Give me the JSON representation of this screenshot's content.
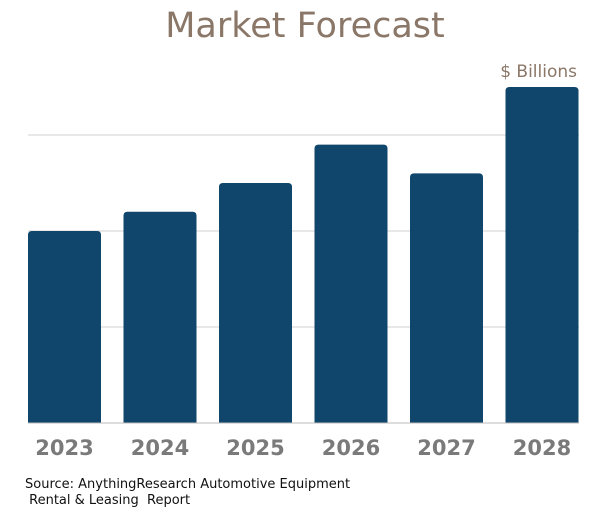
{
  "chart_data": {
    "type": "bar",
    "title": "Market Forecast",
    "unit_label": "$ Billions",
    "categories": [
      "2023",
      "2024",
      "2025",
      "2026",
      "2027",
      "2028"
    ],
    "values": [
      2.0,
      2.2,
      2.5,
      2.9,
      2.6,
      3.5
    ],
    "ylim": [
      0,
      3.5
    ],
    "gridlines": [
      1,
      2,
      3
    ],
    "grid": true,
    "y_tick_labels_shown": false,
    "bar_color": "#10466b",
    "title_color": "#8a7768",
    "tick_label_color": "#7a7a7a"
  },
  "source": {
    "line1": "Source: AnythingResearch Automotive Equipment",
    "line2": " Rental & Leasing  Report"
  }
}
